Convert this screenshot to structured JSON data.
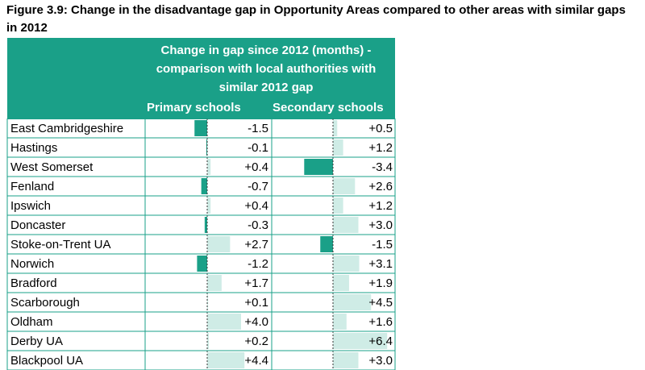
{
  "title": "Figure 3.9: Change in the disadvantage gap in Opportunity Areas compared to other areas with similar gaps in 2012",
  "header": {
    "line1": "Change in gap since 2012 (months) -",
    "line2": "comparison with local authorities with",
    "line3": "similar 2012 gap",
    "primary": "Primary schools",
    "secondary": "Secondary schools"
  },
  "colors": {
    "header": "#1aa088",
    "negative_bar": "#1aa088",
    "positive_bar": "#cfece6",
    "grid": "#1aa088"
  },
  "chart_data": {
    "type": "bar",
    "categories": [
      "East Cambridgeshire",
      "Hastings",
      "West Somerset",
      "Fenland",
      "Ipswich",
      "Doncaster",
      "Stoke-on-Trent UA",
      "Norwich",
      "Bradford",
      "Scarborough",
      "Oldham",
      "Derby UA",
      "Blackpool UA"
    ],
    "series": [
      {
        "name": "Primary schools",
        "values": [
          -1.5,
          -0.1,
          0.4,
          -0.7,
          0.4,
          -0.3,
          2.7,
          -1.2,
          1.7,
          0.1,
          4.0,
          0.2,
          4.4
        ],
        "labels": [
          "-1.5",
          "-0.1",
          "+0.4",
          "-0.7",
          "+0.4",
          "-0.3",
          "+2.7",
          "-1.2",
          "+1.7",
          "+0.1",
          "+4.0",
          "+0.2",
          "+4.4"
        ]
      },
      {
        "name": "Secondary schools",
        "values": [
          0.5,
          1.2,
          -3.4,
          2.6,
          1.2,
          3.0,
          -1.5,
          3.1,
          1.9,
          4.5,
          1.6,
          6.4,
          3.0
        ],
        "labels": [
          "+0.5",
          "+1.2",
          "-3.4",
          "+2.6",
          "+1.2",
          "+3.0",
          "-1.5",
          "+3.1",
          "+1.9",
          "+4.5",
          "+1.6",
          "+6.4",
          "+3.0"
        ]
      }
    ]
  }
}
